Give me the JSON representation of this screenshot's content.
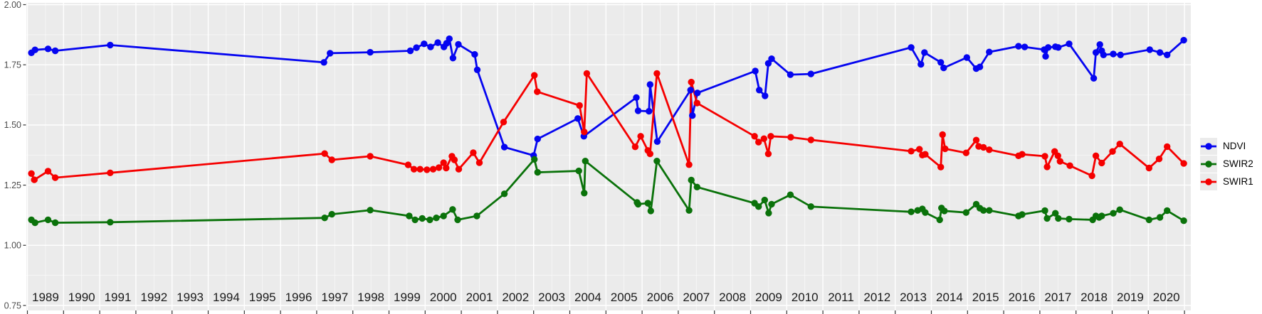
{
  "chart_data": {
    "type": "line",
    "title": "",
    "xlabel": "",
    "ylabel": "",
    "grid": "on",
    "panel_background": "#ebebeb",
    "x_axis": {
      "tick_years": [
        1989,
        1990,
        1991,
        1992,
        1993,
        1994,
        1995,
        1996,
        1997,
        1998,
        1999,
        2000,
        2001,
        2002,
        2003,
        2004,
        2005,
        2006,
        2007,
        2008,
        2009,
        2010,
        2011,
        2012,
        2013,
        2014,
        2015,
        2016,
        2017,
        2018,
        2019,
        2020
      ],
      "range": [
        1988.97,
        2021.17
      ]
    },
    "y_axis": {
      "tick_labels": [
        "2.00",
        "1.75",
        "1.50",
        "1.25",
        "1.00",
        "0.75"
      ],
      "tick_values": [
        2.0,
        1.75,
        1.5,
        1.25,
        1.0,
        0.75
      ],
      "minor_values": [
        1.875,
        1.625,
        1.375,
        1.125,
        0.875
      ],
      "range": [
        0.728,
        2.008
      ]
    },
    "legend": {
      "position": "right",
      "items": [
        {
          "label": "NDVI",
          "color": "#0505f0"
        },
        {
          "label": "SWIR2",
          "color": "#0a720a"
        },
        {
          "label": "SWIR1",
          "color": "#f50000"
        }
      ]
    },
    "series": [
      {
        "name": "NDVI",
        "color": "#0505f0",
        "points": [
          [
            1989.11,
            1.8
          ],
          [
            1989.21,
            1.812
          ],
          [
            1989.57,
            1.816
          ],
          [
            1989.77,
            1.808
          ],
          [
            1991.29,
            1.832
          ],
          [
            1997.2,
            1.76
          ],
          [
            1997.37,
            1.798
          ],
          [
            1998.48,
            1.802
          ],
          [
            1999.59,
            1.808
          ],
          [
            1999.76,
            1.821
          ],
          [
            1999.97,
            1.837
          ],
          [
            2000.15,
            1.824
          ],
          [
            2000.35,
            1.842
          ],
          [
            2000.52,
            1.824
          ],
          [
            2000.59,
            1.839
          ],
          [
            2000.67,
            1.858
          ],
          [
            2000.77,
            1.778
          ],
          [
            2000.92,
            1.835
          ],
          [
            2001.37,
            1.793
          ],
          [
            2001.44,
            1.729
          ],
          [
            2002.19,
            1.408
          ],
          [
            2003.0,
            1.373
          ],
          [
            2003.11,
            1.442
          ],
          [
            2004.22,
            1.527
          ],
          [
            2004.39,
            1.453
          ],
          [
            2005.84,
            1.614
          ],
          [
            2005.89,
            1.559
          ],
          [
            2006.19,
            1.557
          ],
          [
            2006.22,
            1.668
          ],
          [
            2006.42,
            1.431
          ],
          [
            2007.34,
            1.645
          ],
          [
            2007.39,
            1.539
          ],
          [
            2007.53,
            1.633
          ],
          [
            2009.13,
            1.724
          ],
          [
            2009.24,
            1.645
          ],
          [
            2009.4,
            1.621
          ],
          [
            2009.49,
            1.756
          ],
          [
            2009.58,
            1.775
          ],
          [
            2010.1,
            1.709
          ],
          [
            2010.67,
            1.712
          ],
          [
            2013.44,
            1.822
          ],
          [
            2013.71,
            1.752
          ],
          [
            2013.81,
            1.801
          ],
          [
            2014.26,
            1.76
          ],
          [
            2014.34,
            1.737
          ],
          [
            2014.98,
            1.78
          ],
          [
            2015.24,
            1.734
          ],
          [
            2015.34,
            1.741
          ],
          [
            2015.6,
            1.803
          ],
          [
            2016.41,
            1.827
          ],
          [
            2016.58,
            1.824
          ],
          [
            2017.12,
            1.813
          ],
          [
            2017.16,
            1.785
          ],
          [
            2017.23,
            1.822
          ],
          [
            2017.43,
            1.825
          ],
          [
            2017.51,
            1.822
          ],
          [
            2017.81,
            1.837
          ],
          [
            2018.49,
            1.694
          ],
          [
            2018.55,
            1.801
          ],
          [
            2018.66,
            1.834
          ],
          [
            2018.71,
            1.808
          ],
          [
            2018.76,
            1.791
          ],
          [
            2019.03,
            1.795
          ],
          [
            2019.23,
            1.791
          ],
          [
            2020.04,
            1.813
          ],
          [
            2020.32,
            1.801
          ],
          [
            2020.52,
            1.791
          ],
          [
            2020.98,
            1.852
          ]
        ]
      },
      {
        "name": "SWIR2",
        "color": "#0a720a",
        "points": [
          [
            1989.11,
            1.106
          ],
          [
            1989.21,
            1.094
          ],
          [
            1989.57,
            1.106
          ],
          [
            1989.77,
            1.094
          ],
          [
            1991.29,
            1.096
          ],
          [
            1997.22,
            1.114
          ],
          [
            1997.42,
            1.129
          ],
          [
            1998.48,
            1.146
          ],
          [
            1999.56,
            1.122
          ],
          [
            1999.72,
            1.106
          ],
          [
            1999.92,
            1.112
          ],
          [
            2000.13,
            1.106
          ],
          [
            2000.31,
            1.114
          ],
          [
            2000.51,
            1.122
          ],
          [
            2000.76,
            1.149
          ],
          [
            2000.9,
            1.106
          ],
          [
            2001.43,
            1.122
          ],
          [
            2002.19,
            1.214
          ],
          [
            2003.02,
            1.357
          ],
          [
            2003.11,
            1.303
          ],
          [
            2004.25,
            1.309
          ],
          [
            2004.4,
            1.217
          ],
          [
            2004.43,
            1.35
          ],
          [
            2005.86,
            1.178
          ],
          [
            2005.89,
            1.171
          ],
          [
            2006.16,
            1.175
          ],
          [
            2006.24,
            1.143
          ],
          [
            2006.41,
            1.35
          ],
          [
            2007.3,
            1.145
          ],
          [
            2007.36,
            1.271
          ],
          [
            2007.52,
            1.242
          ],
          [
            2009.11,
            1.175
          ],
          [
            2009.22,
            1.161
          ],
          [
            2009.39,
            1.188
          ],
          [
            2009.5,
            1.134
          ],
          [
            2009.58,
            1.171
          ],
          [
            2010.1,
            1.21
          ],
          [
            2010.67,
            1.161
          ],
          [
            2013.44,
            1.139
          ],
          [
            2013.62,
            1.145
          ],
          [
            2013.75,
            1.151
          ],
          [
            2013.83,
            1.136
          ],
          [
            2014.23,
            1.106
          ],
          [
            2014.28,
            1.155
          ],
          [
            2014.36,
            1.143
          ],
          [
            2014.96,
            1.136
          ],
          [
            2015.24,
            1.171
          ],
          [
            2015.34,
            1.154
          ],
          [
            2015.44,
            1.145
          ],
          [
            2015.6,
            1.145
          ],
          [
            2016.41,
            1.122
          ],
          [
            2016.51,
            1.128
          ],
          [
            2017.14,
            1.144
          ],
          [
            2017.2,
            1.112
          ],
          [
            2017.43,
            1.133
          ],
          [
            2017.51,
            1.112
          ],
          [
            2017.81,
            1.109
          ],
          [
            2018.46,
            1.106
          ],
          [
            2018.55,
            1.122
          ],
          [
            2018.64,
            1.116
          ],
          [
            2018.71,
            1.122
          ],
          [
            2019.03,
            1.133
          ],
          [
            2019.21,
            1.148
          ],
          [
            2020.02,
            1.106
          ],
          [
            2020.32,
            1.116
          ],
          [
            2020.52,
            1.144
          ],
          [
            2020.98,
            1.102
          ]
        ]
      },
      {
        "name": "SWIR1",
        "color": "#f50000",
        "points": [
          [
            1989.11,
            1.298
          ],
          [
            1989.19,
            1.272
          ],
          [
            1989.57,
            1.308
          ],
          [
            1989.77,
            1.281
          ],
          [
            1991.29,
            1.301
          ],
          [
            1997.22,
            1.381
          ],
          [
            1997.42,
            1.355
          ],
          [
            1998.48,
            1.37
          ],
          [
            1999.53,
            1.334
          ],
          [
            1999.69,
            1.316
          ],
          [
            1999.86,
            1.316
          ],
          [
            2000.05,
            1.314
          ],
          [
            2000.22,
            1.316
          ],
          [
            2000.38,
            1.323
          ],
          [
            2000.51,
            1.343
          ],
          [
            2000.58,
            1.321
          ],
          [
            2000.74,
            1.37
          ],
          [
            2000.81,
            1.355
          ],
          [
            2000.93,
            1.316
          ],
          [
            2001.33,
            1.385
          ],
          [
            2001.5,
            1.343
          ],
          [
            2002.17,
            1.512
          ],
          [
            2003.02,
            1.706
          ],
          [
            2003.1,
            1.638
          ],
          [
            2004.27,
            1.581
          ],
          [
            2004.4,
            1.471
          ],
          [
            2004.47,
            1.714
          ],
          [
            2005.81,
            1.409
          ],
          [
            2005.96,
            1.453
          ],
          [
            2006.16,
            1.394
          ],
          [
            2006.22,
            1.38
          ],
          [
            2006.41,
            1.714
          ],
          [
            2007.3,
            1.335
          ],
          [
            2007.36,
            1.678
          ],
          [
            2007.52,
            1.591
          ],
          [
            2009.11,
            1.453
          ],
          [
            2009.22,
            1.429
          ],
          [
            2009.37,
            1.443
          ],
          [
            2009.49,
            1.38
          ],
          [
            2009.56,
            1.453
          ],
          [
            2010.11,
            1.449
          ],
          [
            2010.67,
            1.438
          ],
          [
            2013.44,
            1.391
          ],
          [
            2013.67,
            1.399
          ],
          [
            2013.75,
            1.375
          ],
          [
            2013.83,
            1.378
          ],
          [
            2014.26,
            1.325
          ],
          [
            2014.31,
            1.46
          ],
          [
            2014.38,
            1.401
          ],
          [
            2014.96,
            1.384
          ],
          [
            2015.24,
            1.437
          ],
          [
            2015.31,
            1.411
          ],
          [
            2015.44,
            1.407
          ],
          [
            2015.6,
            1.397
          ],
          [
            2016.41,
            1.372
          ],
          [
            2016.51,
            1.378
          ],
          [
            2017.14,
            1.37
          ],
          [
            2017.2,
            1.326
          ],
          [
            2017.41,
            1.39
          ],
          [
            2017.5,
            1.372
          ],
          [
            2017.56,
            1.349
          ],
          [
            2017.83,
            1.331
          ],
          [
            2018.44,
            1.289
          ],
          [
            2018.55,
            1.372
          ],
          [
            2018.71,
            1.342
          ],
          [
            2019.01,
            1.39
          ],
          [
            2019.21,
            1.421
          ],
          [
            2020.02,
            1.321
          ],
          [
            2020.3,
            1.359
          ],
          [
            2020.52,
            1.41
          ],
          [
            2020.98,
            1.34
          ]
        ]
      }
    ]
  },
  "colors": {
    "page_bg": "#ffffff",
    "panel_bg": "#ebebeb",
    "grid_major": "#ffffff",
    "grid_minor": "#ffffff",
    "y_axis_text": "#4d4d4d",
    "x_axis_text": "#1a1a1a",
    "tick_mark": "#333333",
    "legend_key_bg": "#ebebeb",
    "legend_text": "#000000"
  }
}
